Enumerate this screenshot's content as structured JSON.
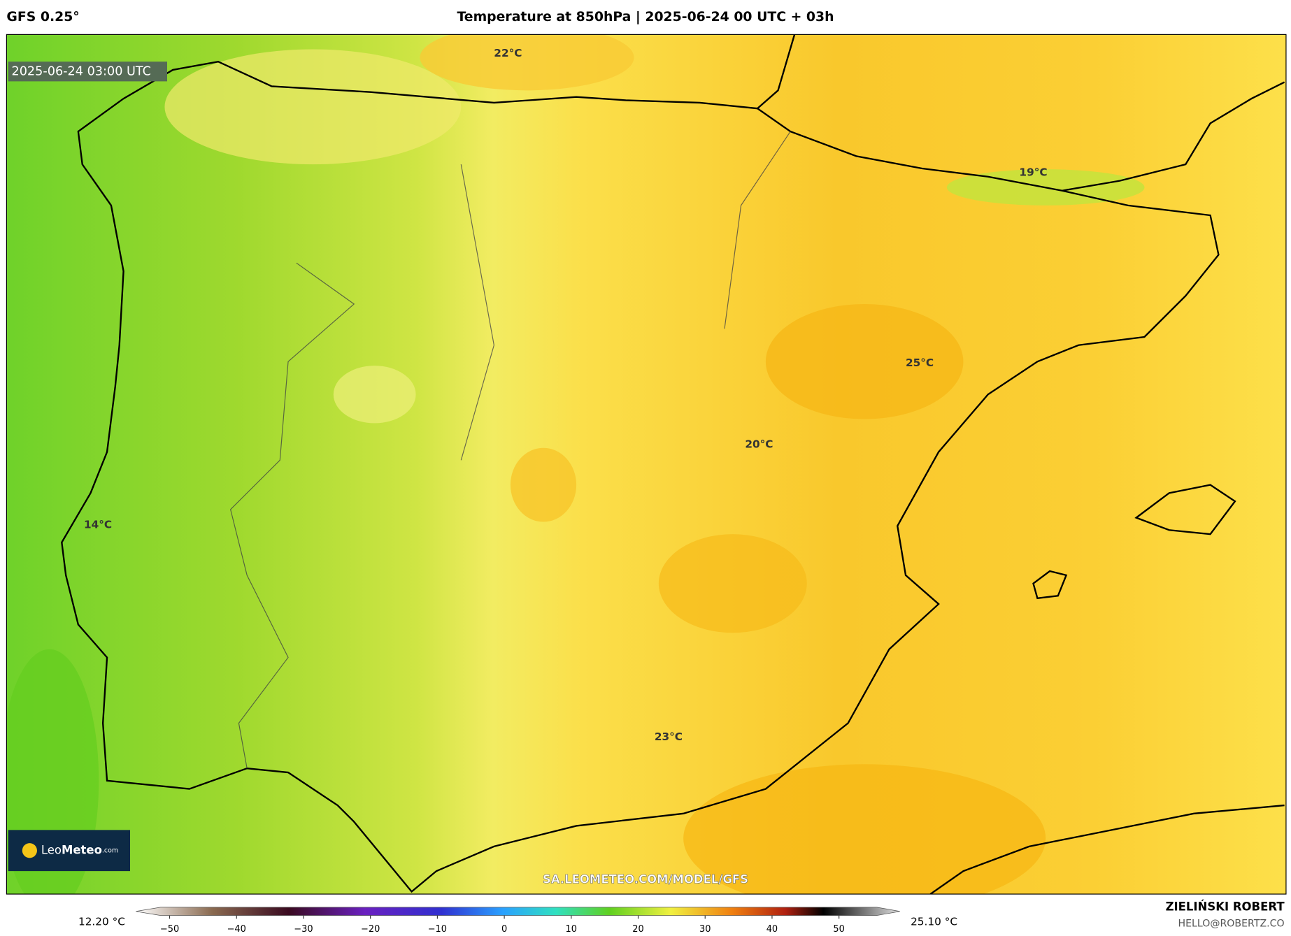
{
  "header": {
    "model": "GFS 0.25°",
    "title": "Temperature at 850hPa | 2025-06-24 00 UTC + 03h"
  },
  "map": {
    "timestamp": "2025-06-24 03:00 UTC",
    "contour_labels": [
      "22°C",
      "19°C",
      "25°C",
      "20°C",
      "14°C",
      "23°C"
    ],
    "logo": {
      "name": "Leo",
      "brand": "Meteo",
      "suffix": ".com"
    },
    "url": "SA.LEOMETEO.COM/MODEL/GFS"
  },
  "colorbar": {
    "min_label": "12.20 °C",
    "max_label": "25.10 °C",
    "ticks": [
      "−50",
      "−40",
      "−30",
      "−20",
      "−10",
      "0",
      "10",
      "20",
      "30",
      "40",
      "50"
    ]
  },
  "footer": {
    "author": "ZIELIŃSKI ROBERT",
    "email": "HELLO@ROBERTZ.CO"
  }
}
